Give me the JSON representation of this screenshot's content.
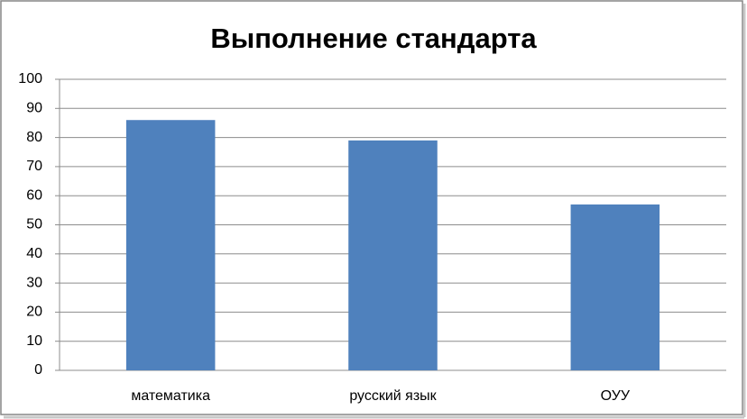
{
  "chart_data": {
    "type": "bar",
    "title": "Выполнение стандарта",
    "categories": [
      "математика",
      "русский язык",
      "ОУУ"
    ],
    "values": [
      86,
      79,
      57
    ],
    "color": "#4f81bd",
    "ylim": [
      0,
      100
    ],
    "yticks": [
      0,
      10,
      20,
      30,
      40,
      50,
      60,
      70,
      80,
      90,
      100
    ],
    "grid": true
  }
}
